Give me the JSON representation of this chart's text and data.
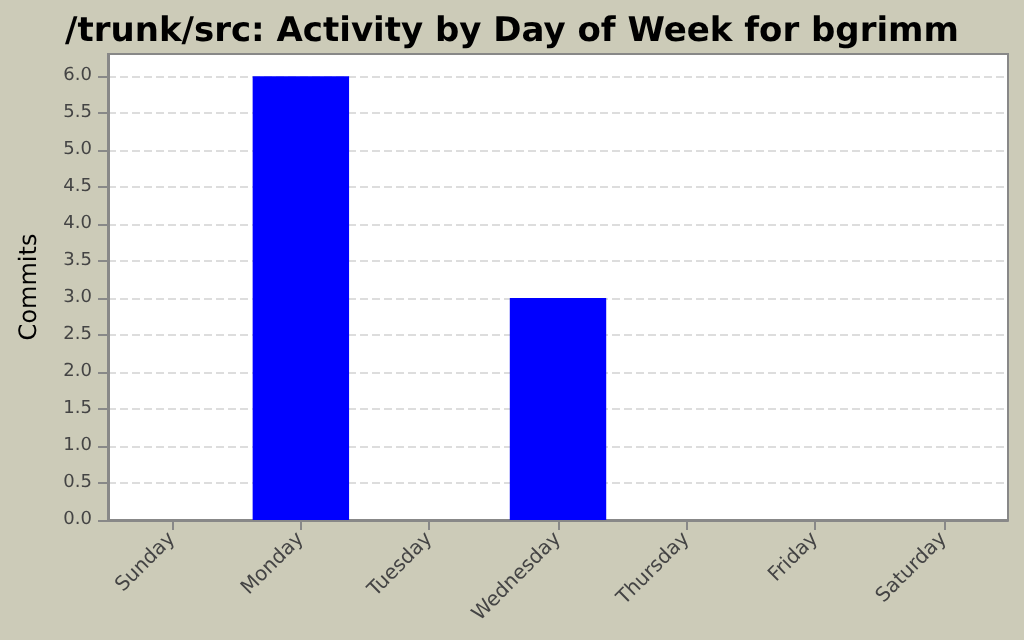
{
  "chart_data": {
    "type": "bar",
    "title": "/trunk/src: Activity by Day of Week for bgrimm",
    "ylabel": "Commits",
    "categories": [
      "Sunday",
      "Monday",
      "Tuesday",
      "Wednesday",
      "Thursday",
      "Friday",
      "Saturday"
    ],
    "values": [
      0,
      6,
      0,
      3,
      0,
      0,
      0
    ],
    "color": "#0000ff",
    "ylim": [
      0,
      6.3
    ],
    "yticks": [
      {
        "value": 0,
        "label": "0.0"
      },
      {
        "value": 0.5,
        "label": "0.5"
      },
      {
        "value": 1,
        "label": "1.0"
      },
      {
        "value": 1.5,
        "label": "1.5"
      },
      {
        "value": 2,
        "label": "2.0"
      },
      {
        "value": 2.5,
        "label": "2.5"
      },
      {
        "value": 3,
        "label": "3.0"
      },
      {
        "value": 3.5,
        "label": "3.5"
      },
      {
        "value": 4,
        "label": "4.0"
      },
      {
        "value": 4.5,
        "label": "4.5"
      },
      {
        "value": 5,
        "label": "5.0"
      },
      {
        "value": 5.5,
        "label": "5.5"
      },
      {
        "value": 6,
        "label": "6.0"
      }
    ],
    "grid": "y"
  }
}
